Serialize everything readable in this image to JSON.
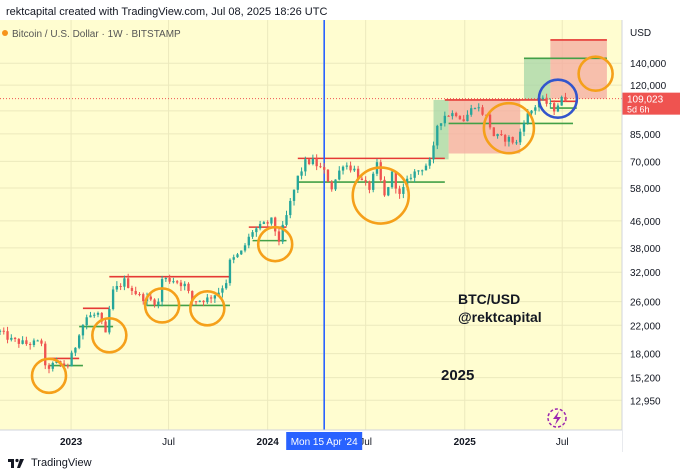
{
  "header": {
    "caption": "rektcapital created with TradingView.com, Jul 08, 2025 18:26 UTC"
  },
  "footer": {
    "brand": "TradingView",
    "logo_icon": "tradingview-logo-icon"
  },
  "colors": {
    "plot_background": "#fffdd0",
    "up_candle": "#26a69a",
    "down_candle": "#ef5350",
    "resistance_line": "#e53935",
    "support_line": "#43a047",
    "circle_orange": "#f5a01a",
    "circle_blue": "#3355cc",
    "vertical_line": "#2962ff",
    "price_tag_bg": "#ef5350",
    "bull_zone": "#a5d6a7",
    "bear_zone": "#f4a9a0"
  },
  "chart_data": {
    "type": "candlestick",
    "title": "Bitcoin / U.S. Dollar · 1W · BITSTAMP",
    "symbol": "BTC/USD",
    "interval": "1W",
    "exchange": "BITSTAMP",
    "currency_label": "USD",
    "y_scale": "log",
    "ylim": [
      10500,
      190000
    ],
    "xlim": [
      "2022-08-22",
      "2025-10-20"
    ],
    "y_ticks": [
      140000,
      120000,
      100000,
      85000,
      70000,
      58000,
      46000,
      38000,
      32000,
      26000,
      22000,
      18000,
      15200,
      12950
    ],
    "y_tick_labels": [
      "140,000",
      "120,000",
      "",
      "85,000",
      "70,000",
      "58,000",
      "46,000",
      "38,000",
      "32,000",
      "26,000",
      "22,000",
      "18,000",
      "15,200",
      "12,950"
    ],
    "x_ticks": [
      {
        "date": "2023-01-01",
        "label": "2023",
        "bold": true
      },
      {
        "date": "2023-07-01",
        "label": "Jul",
        "bold": false
      },
      {
        "date": "2024-01-01",
        "label": "2024",
        "bold": true
      },
      {
        "date": "2024-07-01",
        "label": "Jul",
        "bold": false
      },
      {
        "date": "2025-01-01",
        "label": "2025",
        "bold": true
      },
      {
        "date": "2025-07-01",
        "label": "Jul",
        "bold": false
      }
    ],
    "grid": true,
    "current_price": {
      "value": 109023,
      "label": "109,023",
      "countdown": "5d 6h"
    },
    "crosshair": {
      "date": "2024-04-15",
      "label": "Mon 15 Apr '24"
    },
    "annotations": {
      "ticker_text": "BTC/USD",
      "handle_text": "@rektcapital",
      "year_text": "2025"
    },
    "trend_points": [
      [
        "2022-08-22",
        21000
      ],
      [
        "2022-09-12",
        19800
      ],
      [
        "2022-10-10",
        19300
      ],
      [
        "2022-11-07",
        19500
      ],
      [
        "2022-11-14",
        16200
      ],
      [
        "2022-12-05",
        16800
      ],
      [
        "2022-12-26",
        16550
      ],
      [
        "2023-01-09",
        19000
      ],
      [
        "2023-01-16",
        21000
      ],
      [
        "2023-01-30",
        23300
      ],
      [
        "2023-02-20",
        23800
      ],
      [
        "2023-03-06",
        20500
      ],
      [
        "2023-03-13",
        24500
      ],
      [
        "2023-03-20",
        27900
      ],
      [
        "2023-04-10",
        30100
      ],
      [
        "2023-04-24",
        28400
      ],
      [
        "2023-05-08",
        27000
      ],
      [
        "2023-06-12",
        25800
      ],
      [
        "2023-06-19",
        30500
      ],
      [
        "2023-07-10",
        30300
      ],
      [
        "2023-07-31",
        29200
      ],
      [
        "2023-08-14",
        26100
      ],
      [
        "2023-09-11",
        26500
      ],
      [
        "2023-10-02",
        27900
      ],
      [
        "2023-10-16",
        30000
      ],
      [
        "2023-10-23",
        34400
      ],
      [
        "2023-11-13",
        36800
      ],
      [
        "2023-12-04",
        42800
      ],
      [
        "2024-01-08",
        46000
      ],
      [
        "2024-01-22",
        40100
      ],
      [
        "2024-02-05",
        47500
      ],
      [
        "2024-02-12",
        52200
      ],
      [
        "2024-02-26",
        62500
      ],
      [
        "2024-03-11",
        69500
      ],
      [
        "2024-03-25",
        70000
      ],
      [
        "2024-04-15",
        64900
      ],
      [
        "2024-04-29",
        58200
      ],
      [
        "2024-05-20",
        69000
      ],
      [
        "2024-06-10",
        66000
      ],
      [
        "2024-06-24",
        60500
      ],
      [
        "2024-07-08",
        58000
      ],
      [
        "2024-07-22",
        68000
      ],
      [
        "2024-08-05",
        54500
      ],
      [
        "2024-08-19",
        64000
      ],
      [
        "2024-09-02",
        54800
      ],
      [
        "2024-09-23",
        63500
      ],
      [
        "2024-10-14",
        67000
      ],
      [
        "2024-10-28",
        69500
      ],
      [
        "2024-11-04",
        76500
      ],
      [
        "2024-11-11",
        90500
      ],
      [
        "2024-11-25",
        97000
      ],
      [
        "2024-12-16",
        98500
      ],
      [
        "2024-12-30",
        94000
      ],
      [
        "2025-01-20",
        104500
      ],
      [
        "2025-02-10",
        96000
      ],
      [
        "2025-02-24",
        84000
      ],
      [
        "2025-03-10",
        82500
      ],
      [
        "2025-03-24",
        82000
      ],
      [
        "2025-04-07",
        79500
      ],
      [
        "2025-04-21",
        94000
      ],
      [
        "2025-05-12",
        103500
      ],
      [
        "2025-05-19",
        109000
      ],
      [
        "2025-06-02",
        105500
      ],
      [
        "2025-06-16",
        101500
      ],
      [
        "2025-06-30",
        108500
      ],
      [
        "2025-07-07",
        109023
      ]
    ],
    "levels": [
      {
        "kind": "resistance",
        "price": 17400,
        "from": "2022-11-21",
        "to": "2023-01-16"
      },
      {
        "kind": "support",
        "price": 16550,
        "from": "2022-11-21",
        "to": "2023-01-23"
      },
      {
        "kind": "resistance",
        "price": 24800,
        "from": "2023-01-23",
        "to": "2023-03-13"
      },
      {
        "kind": "support",
        "price": 21800,
        "from": "2023-01-16",
        "to": "2023-03-20"
      },
      {
        "kind": "resistance",
        "price": 31000,
        "from": "2023-03-13",
        "to": "2023-10-23"
      },
      {
        "kind": "support",
        "price": 25300,
        "from": "2023-05-22",
        "to": "2023-10-23"
      },
      {
        "kind": "resistance",
        "price": 44000,
        "from": "2023-11-27",
        "to": "2024-02-05"
      },
      {
        "kind": "support",
        "price": 40000,
        "from": "2023-12-04",
        "to": "2024-02-05"
      },
      {
        "kind": "resistance",
        "price": 71500,
        "from": "2024-02-26",
        "to": "2024-11-25"
      },
      {
        "kind": "support",
        "price": 60500,
        "from": "2024-02-26",
        "to": "2024-11-25"
      },
      {
        "kind": "resistance",
        "price": 108000,
        "from": "2024-11-25",
        "to": "2025-06-02"
      },
      {
        "kind": "support",
        "price": 91500,
        "from": "2024-12-02",
        "to": "2025-07-21"
      },
      {
        "kind": "resistance",
        "price": 107000,
        "from": "2025-06-09",
        "to": "2025-07-28"
      },
      {
        "kind": "support",
        "price": 102000,
        "from": "2025-06-09",
        "to": "2025-07-28"
      }
    ],
    "zones": [
      {
        "kind": "bull",
        "from": "2024-11-04",
        "to": "2024-12-02",
        "low": 71000,
        "high": 108000
      },
      {
        "kind": "bear",
        "from": "2024-12-02",
        "to": "2025-04-14",
        "low": 74000,
        "high": 108000
      },
      {
        "kind": "bull",
        "from": "2025-04-21",
        "to": "2025-06-09",
        "low": 108000,
        "high": 145000
      },
      {
        "kind": "bear",
        "from": "2025-06-09",
        "to": "2025-09-22",
        "low": 109000,
        "high": 165000
      }
    ],
    "zone_lines": [
      {
        "kind": "bear",
        "price": 165000,
        "from": "2025-06-09",
        "to": "2025-09-22"
      },
      {
        "kind": "bull",
        "price": 145000,
        "from": "2025-04-21",
        "to": "2025-09-22"
      }
    ],
    "circles": [
      {
        "color": "orange",
        "date": "2022-11-21",
        "price": 15400
      },
      {
        "color": "orange",
        "date": "2023-03-13",
        "price": 20500
      },
      {
        "color": "orange",
        "date": "2023-06-19",
        "price": 25300
      },
      {
        "color": "orange",
        "date": "2023-09-11",
        "price": 24800
      },
      {
        "color": "orange",
        "date": "2024-01-15",
        "price": 39000
      },
      {
        "color": "orange",
        "date": "2024-07-29",
        "price": 55000
      },
      {
        "color": "orange",
        "date": "2025-03-24",
        "price": 88500
      },
      {
        "color": "blue",
        "date": "2025-06-23",
        "price": 109000
      },
      {
        "color": "orange",
        "date": "2025-09-01",
        "price": 130000
      }
    ]
  }
}
